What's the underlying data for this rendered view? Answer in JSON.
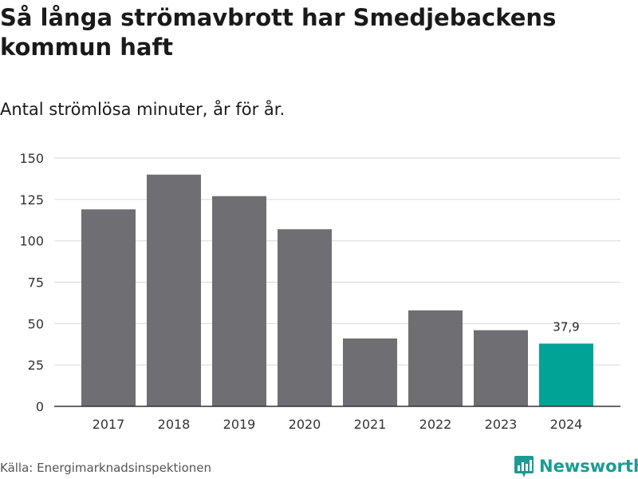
{
  "header": {
    "title": "Så långa strömavbrott har Smedjebackens kommun haft",
    "subtitle": "Antal strömlösa minuter, år för år."
  },
  "footer": {
    "source": "Källa: Energimarknadsinspektionen",
    "brand": "Newsworthy"
  },
  "colors": {
    "bar": "#6f6e73",
    "highlight": "#00a396",
    "grid": "#dddddd",
    "axis": "#333333",
    "brand": "#1b9b93"
  },
  "chart_data": {
    "type": "bar",
    "title": "Så långa strömavbrott har Smedjebackens kommun haft",
    "subtitle": "Antal strömlösa minuter, år för år.",
    "xlabel": "",
    "ylabel": "",
    "categories": [
      "2017",
      "2018",
      "2019",
      "2020",
      "2021",
      "2022",
      "2023",
      "2024"
    ],
    "values": [
      119,
      140,
      127,
      107,
      41,
      58,
      46,
      37.9
    ],
    "highlight_index": 7,
    "data_labels": [
      {
        "index": 7,
        "text": "37,9"
      }
    ],
    "ylim": [
      0,
      150
    ],
    "yticks": [
      0,
      25,
      50,
      75,
      100,
      125,
      150
    ],
    "grid": true
  }
}
